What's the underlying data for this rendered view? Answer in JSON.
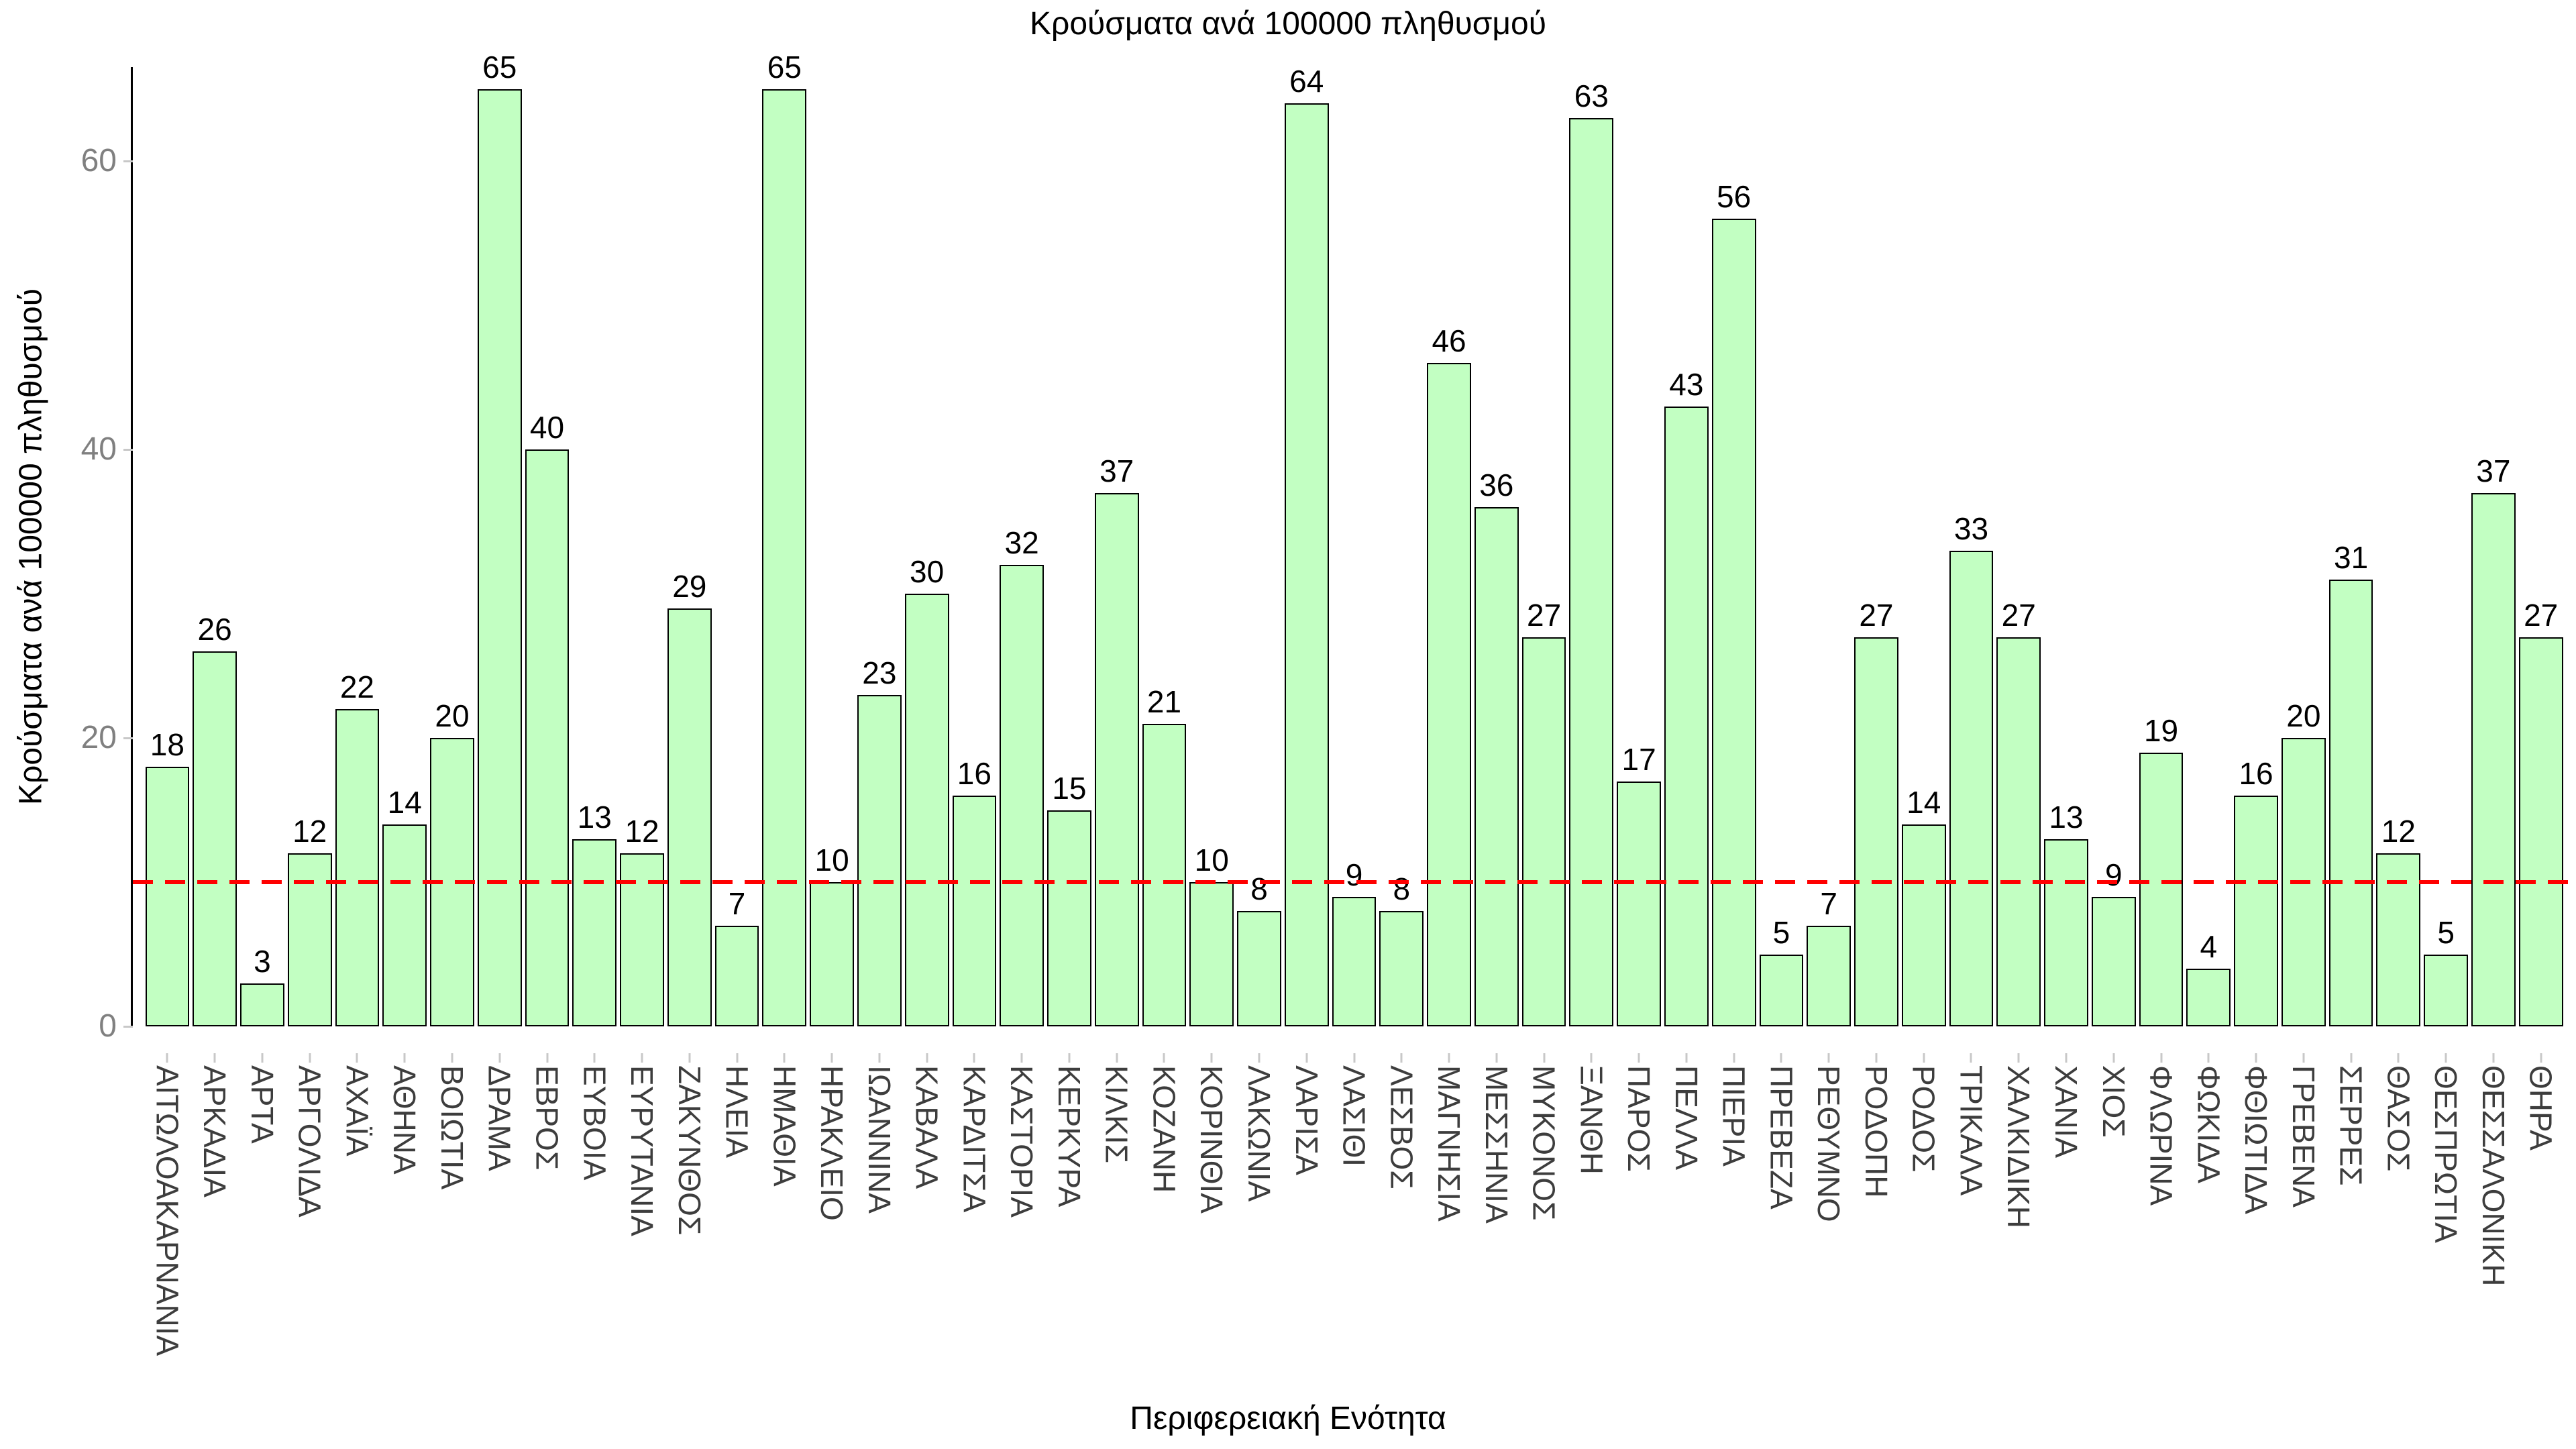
{
  "chart_data": {
    "type": "bar",
    "title": "Κρούσματα ανά 100000 πληθυσμού",
    "xlabel": "Περιφερειακή Ενότητα",
    "ylabel": "Κρούσματα ανά 100000 πληθυσμού",
    "categories": [
      "ΑΙΤΩΛΟΑΚΑΡΝΑΝΙΑ",
      "ΑΡΚΑΔΙΑ",
      "ΑΡΤΑ",
      "ΑΡΓΟΛΙΔΑ",
      "ΑΧΑΪΑ",
      "ΑΘΗΝΑ",
      "ΒΟΙΩΤΙΑ",
      "ΔΡΑΜΑ",
      "ΕΒΡΟΣ",
      "ΕΥΒΟΙΑ",
      "ΕΥΡΥΤΑΝΙΑ",
      "ΖΑΚΥΝΘΟΣ",
      "ΗΛΕΙΑ",
      "ΗΜΑΘΙΑ",
      "ΗΡΑΚΛΕΙΟ",
      "ΙΩΑΝΝΙΝΑ",
      "ΚΑΒΑΛΑ",
      "ΚΑΡΔΙΤΣΑ",
      "ΚΑΣΤΟΡΙΑ",
      "ΚΕΡΚΥΡΑ",
      "ΚΙΛΚΙΣ",
      "ΚΟΖΑΝΗ",
      "ΚΟΡΙΝΘΙΑ",
      "ΛΑΚΩΝΙΑ",
      "ΛΑΡΙΣΑ",
      "ΛΑΣΙΘΙ",
      "ΛΕΣΒΟΣ",
      "ΜΑΓΝΗΣΙΑ",
      "ΜΕΣΣΗΝΙΑ",
      "ΜΥΚΟΝΟΣ",
      "ΞΑΝΘΗ",
      "ΠΑΡΟΣ",
      "ΠΕΛΛΑ",
      "ΠΙΕΡΙΑ",
      "ΠΡΕΒΕΖΑ",
      "ΡΕΘΥΜΝΟ",
      "ΡΟΔΟΠΗ",
      "ΡΟΔΟΣ",
      "ΤΡΙΚΑΛΑ",
      "ΧΑΛΚΙΔΙΚΗ",
      "ΧΑΝΙΑ",
      "ΧΙΟΣ",
      "ΦΛΩΡΙΝΑ",
      "ΦΩΚΙΔΑ",
      "ΦΘΙΩΤΙΔΑ",
      "ΓΡΕΒΕΝΑ",
      "ΣΕΡΡΕΣ",
      "ΘΑΣΟΣ",
      "ΘΕΣΠΡΩΤΙΑ",
      "ΘΕΣΣΑΛΟΝΙΚΗ",
      "ΘΗΡΑ"
    ],
    "values": [
      18,
      26,
      3,
      12,
      22,
      14,
      20,
      65,
      40,
      13,
      12,
      29,
      7,
      65,
      10,
      23,
      30,
      16,
      32,
      15,
      37,
      21,
      10,
      8,
      64,
      9,
      8,
      46,
      36,
      27,
      63,
      17,
      43,
      56,
      5,
      7,
      27,
      14,
      33,
      27,
      13,
      9,
      19,
      4,
      16,
      20,
      31,
      12,
      5,
      37,
      27
    ],
    "yticks": [
      0,
      20,
      40,
      60
    ],
    "ylim": [
      0,
      66.5
    ],
    "grid": false,
    "legend": null,
    "reference_line": {
      "value": 10,
      "style": "dashed",
      "color": "#ff0000"
    },
    "bar_fill": "#c2ffc2",
    "bar_border": "#000000",
    "ytick_text_color": "#808080",
    "xtick_text_color": "#3d3d3d",
    "tick_mark_color": "#c8c8c8"
  }
}
